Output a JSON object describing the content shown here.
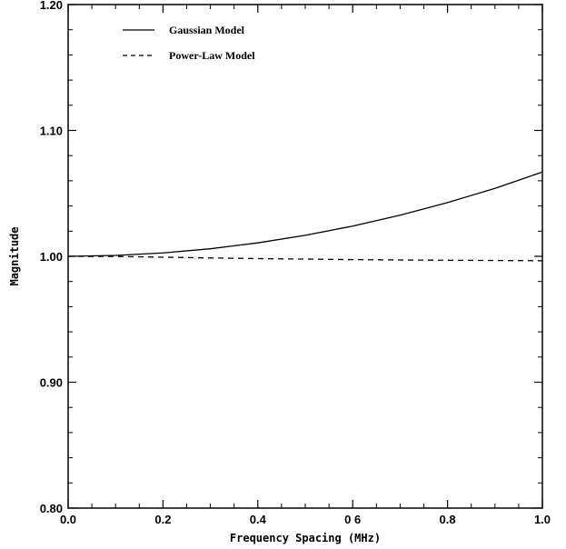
{
  "chart_data": {
    "type": "line",
    "title": "",
    "xlabel": "Frequency Spacing (MHz)",
    "ylabel": "Magnitude",
    "xlim": [
      0.0,
      1.0
    ],
    "ylim": [
      0.8,
      1.2
    ],
    "x_ticks": [
      {
        "value": 0.0,
        "label": "0.0"
      },
      {
        "value": 0.2,
        "label": "0.2"
      },
      {
        "value": 0.4,
        "label": "0.4"
      },
      {
        "value": 0.6,
        "label": "0 6"
      },
      {
        "value": 0.8,
        "label": "0.8"
      },
      {
        "value": 1.0,
        "label": "1.0"
      }
    ],
    "y_ticks": [
      {
        "value": 0.8,
        "label": "0.80"
      },
      {
        "value": 0.9,
        "label": "0.90"
      },
      {
        "value": 1.0,
        "label": "1.00"
      },
      {
        "value": 1.1,
        "label": "1.10"
      },
      {
        "value": 1.2,
        "label": "1.20"
      }
    ],
    "grid": false,
    "legend_position": "top-left",
    "series": [
      {
        "name": "Gaussian Model",
        "style": "solid",
        "x": [
          0.0,
          0.1,
          0.2,
          0.3,
          0.4,
          0.5,
          0.6,
          0.7,
          0.8,
          0.9,
          1.0
        ],
        "y": [
          1.0,
          1.0007,
          1.0027,
          1.006,
          1.0107,
          1.0167,
          1.024,
          1.0327,
          1.0427,
          1.054,
          1.067
        ]
      },
      {
        "name": "Power-Law Model",
        "style": "dashed",
        "x": [
          0.0,
          0.1,
          0.2,
          0.3,
          0.4,
          0.5,
          0.6,
          0.7,
          0.8,
          0.9,
          1.0
        ],
        "y": [
          1.0,
          0.9999,
          0.9993,
          0.9987,
          0.9982,
          0.9978,
          0.9974,
          0.9971,
          0.9969,
          0.9967,
          0.9965
        ]
      }
    ]
  }
}
